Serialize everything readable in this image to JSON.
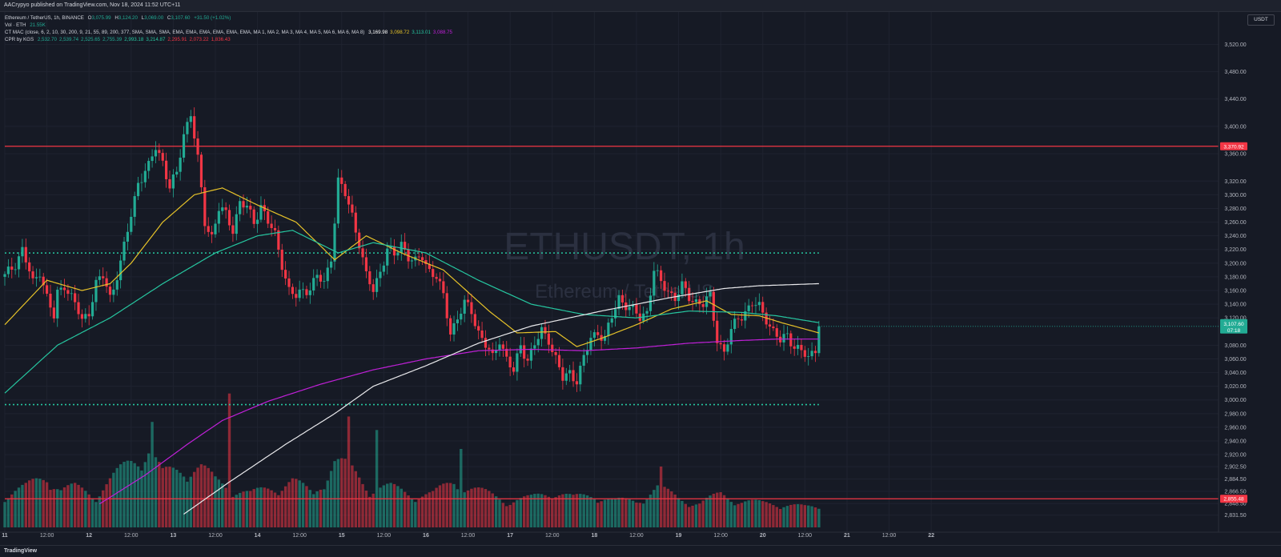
{
  "header": {
    "publisher": "AACrypyo published on TradingView.com, Nov 18, 2024 11:52 UTC+11"
  },
  "legend": {
    "symbol": "Ethereum / TetherUS, 1h, BINANCE",
    "open_label": "O",
    "open": "3,075.99",
    "high_label": "H",
    "high": "3,124.20",
    "low_label": "L",
    "low": "3,069.00",
    "close_label": "C",
    "close": "3,107.60",
    "change": "+31.50 (+1.02%)",
    "vol_label": "Vol · ETH",
    "vol_value": "21.55K",
    "ctmac_label": "CT MAC (close, 6, 2, 10, 30, 200, 9, 21, 55, 89, 200, 377, SMA, SMA, SMA, EMA, EMA, EMA, EMA, EMA, EMA, MA 1, MA 2, MA 3, MA 4, MA 5, MA 6, MA 6, MA 8)",
    "ctmac_values": [
      {
        "v": "3,169.98",
        "color": "#ffffff"
      },
      {
        "v": "3,098.72",
        "color": "#e6c229"
      },
      {
        "v": "3,113.01",
        "color": "#26c6a0"
      },
      {
        "v": "3,088.75",
        "color": "#c020d8"
      }
    ],
    "cpr_label": "CPR by KGS",
    "cpr_values": [
      {
        "v": "2,532.70",
        "color": "#22ab94"
      },
      {
        "v": "2,539.74",
        "color": "#22ab94"
      },
      {
        "v": "2,525.65",
        "color": "#22ab94"
      },
      {
        "v": "2,755.39",
        "color": "#22ab94"
      },
      {
        "v": "2,993.18",
        "color": "#26c6a0"
      },
      {
        "v": "3,214.87",
        "color": "#26c6a0"
      },
      {
        "v": "2,295.91",
        "color": "#f23645"
      },
      {
        "v": "2,073.22",
        "color": "#f23645"
      },
      {
        "v": "1,836.43",
        "color": "#f23645"
      }
    ]
  },
  "watermark": {
    "symbol": "ETHUSDT, 1h",
    "name": "Ethereum / TetherUS"
  },
  "axis": {
    "unit": "USDT"
  },
  "footer": {
    "logo": "TradingView"
  },
  "colors": {
    "up": "#22ab94",
    "down": "#f23645",
    "sma200": "#e9e9ec",
    "ma_yellow": "#e6c229",
    "ma_teal": "#26c6a0",
    "ma_purple": "#c020d8",
    "level": "#f23645",
    "cpr": "#26c6a0"
  },
  "chart_data": {
    "type": "candlestick",
    "ylim": [
      2823,
      3538
    ],
    "y_ticks": [
      "3,520.00",
      "3,480.00",
      "3,440.00",
      "3,400.00",
      "3,360.00",
      "3,320.00",
      "3,300.00",
      "3,280.00",
      "3,260.00",
      "3,240.00",
      "3,220.00",
      "3,200.00",
      "3,180.00",
      "3,160.00",
      "3,140.00",
      "3,120.00",
      "3,080.00",
      "3,060.00",
      "3,040.00",
      "3,020.00",
      "3,000.00",
      "2,980.00",
      "2,960.00",
      "2,940.00",
      "2,920.00",
      "2,902.50",
      "2,884.50",
      "2,866.50",
      "2,848.50",
      "2,831.50"
    ],
    "x_ticks": [
      "11",
      "12:00",
      "12",
      "12:00",
      "13",
      "12:00",
      "14",
      "12:00",
      "15",
      "12:00",
      "16",
      "12:00",
      "17",
      "12:00",
      "18",
      "12:00",
      "19",
      "12:00",
      "20",
      "12:00",
      "21",
      "12:00",
      "22"
    ],
    "x_ticks_bold": [
      "11",
      "12",
      "13",
      "14",
      "15",
      "16",
      "17",
      "18"
    ],
    "levels": [
      {
        "price": 3370.92,
        "label": "3,370.92"
      },
      {
        "price": 2855.48,
        "label": "2,855.48"
      }
    ],
    "cpr_lines": [
      3214.87,
      2993.18
    ],
    "last_price": {
      "value": "3,107.60",
      "countdown": "07:18"
    },
    "anchors": [
      {
        "h": 0,
        "p": 3180
      },
      {
        "h": 3,
        "p": 3200
      },
      {
        "h": 5,
        "p": 3220
      },
      {
        "h": 8,
        "p": 3170
      },
      {
        "h": 10,
        "p": 3190
      },
      {
        "h": 12,
        "p": 3150
      },
      {
        "h": 14,
        "p": 3120
      },
      {
        "h": 15,
        "p": 3155
      },
      {
        "h": 17,
        "p": 3170
      },
      {
        "h": 20,
        "p": 3140
      },
      {
        "h": 22,
        "p": 3115
      },
      {
        "h": 24,
        "p": 3130
      },
      {
        "h": 26,
        "p": 3170
      },
      {
        "h": 28,
        "p": 3180
      },
      {
        "h": 30,
        "p": 3150
      },
      {
        "h": 33,
        "p": 3200
      },
      {
        "h": 36,
        "p": 3270
      },
      {
        "h": 38,
        "p": 3320
      },
      {
        "h": 41,
        "p": 3340
      },
      {
        "h": 43,
        "p": 3370
      },
      {
        "h": 45,
        "p": 3350
      },
      {
        "h": 47,
        "p": 3310
      },
      {
        "h": 49,
        "p": 3330
      },
      {
        "h": 51,
        "p": 3390
      },
      {
        "h": 53,
        "p": 3420
      },
      {
        "h": 55,
        "p": 3350
      },
      {
        "h": 57,
        "p": 3260
      },
      {
        "h": 59,
        "p": 3240
      },
      {
        "h": 61,
        "p": 3280
      },
      {
        "h": 63,
        "p": 3270
      },
      {
        "h": 65,
        "p": 3250
      },
      {
        "h": 67,
        "p": 3290
      },
      {
        "h": 69,
        "p": 3280
      },
      {
        "h": 71,
        "p": 3260
      },
      {
        "h": 73,
        "p": 3285
      },
      {
        "h": 75,
        "p": 3260
      },
      {
        "h": 77,
        "p": 3240
      },
      {
        "h": 79,
        "p": 3200
      },
      {
        "h": 81,
        "p": 3160
      },
      {
        "h": 83,
        "p": 3150
      },
      {
        "h": 85,
        "p": 3160
      },
      {
        "h": 87,
        "p": 3165
      },
      {
        "h": 89,
        "p": 3180
      },
      {
        "h": 91,
        "p": 3170
      },
      {
        "h": 93,
        "p": 3210
      },
      {
        "h": 95,
        "p": 3320
      },
      {
        "h": 97,
        "p": 3300
      },
      {
        "h": 99,
        "p": 3270
      },
      {
        "h": 101,
        "p": 3230
      },
      {
        "h": 103,
        "p": 3180
      },
      {
        "h": 105,
        "p": 3160
      },
      {
        "h": 107,
        "p": 3190
      },
      {
        "h": 109,
        "p": 3220
      },
      {
        "h": 111,
        "p": 3210
      },
      {
        "h": 113,
        "p": 3230
      },
      {
        "h": 115,
        "p": 3210
      },
      {
        "h": 117,
        "p": 3200
      },
      {
        "h": 119,
        "p": 3210
      },
      {
        "h": 121,
        "p": 3190
      },
      {
        "h": 123,
        "p": 3180
      },
      {
        "h": 125,
        "p": 3150
      },
      {
        "h": 127,
        "p": 3100
      },
      {
        "h": 129,
        "p": 3120
      },
      {
        "h": 131,
        "p": 3140
      },
      {
        "h": 133,
        "p": 3130
      },
      {
        "h": 135,
        "p": 3100
      },
      {
        "h": 137,
        "p": 3080
      },
      {
        "h": 139,
        "p": 3060
      },
      {
        "h": 141,
        "p": 3090
      },
      {
        "h": 143,
        "p": 3060
      },
      {
        "h": 145,
        "p": 3040
      },
      {
        "h": 147,
        "p": 3080
      },
      {
        "h": 149,
        "p": 3060
      },
      {
        "h": 151,
        "p": 3080
      },
      {
        "h": 153,
        "p": 3100
      },
      {
        "h": 155,
        "p": 3090
      },
      {
        "h": 157,
        "p": 3060
      },
      {
        "h": 159,
        "p": 3030
      },
      {
        "h": 161,
        "p": 3040
      },
      {
        "h": 163,
        "p": 3030
      },
      {
        "h": 165,
        "p": 3060
      },
      {
        "h": 167,
        "p": 3090
      },
      {
        "h": 169,
        "p": 3100
      },
      {
        "h": 171,
        "p": 3090
      },
      {
        "h": 173,
        "p": 3120
      },
      {
        "h": 175,
        "p": 3150
      },
      {
        "h": 177,
        "p": 3140
      },
      {
        "h": 179,
        "p": 3130
      },
      {
        "h": 181,
        "p": 3120
      },
      {
        "h": 183,
        "p": 3130
      },
      {
        "h": 185,
        "p": 3190
      },
      {
        "h": 187,
        "p": 3170
      },
      {
        "h": 189,
        "p": 3160
      },
      {
        "h": 191,
        "p": 3150
      },
      {
        "h": 193,
        "p": 3165
      },
      {
        "h": 195,
        "p": 3150
      },
      {
        "h": 197,
        "p": 3145
      },
      {
        "h": 199,
        "p": 3140
      },
      {
        "h": 201,
        "p": 3150
      },
      {
        "h": 203,
        "p": 3090
      },
      {
        "h": 205,
        "p": 3070
      },
      {
        "h": 207,
        "p": 3100
      },
      {
        "h": 209,
        "p": 3120
      },
      {
        "h": 211,
        "p": 3130
      },
      {
        "h": 213,
        "p": 3140
      },
      {
        "h": 215,
        "p": 3135
      },
      {
        "h": 217,
        "p": 3120
      },
      {
        "h": 219,
        "p": 3100
      },
      {
        "h": 221,
        "p": 3085
      },
      {
        "h": 223,
        "p": 3095
      },
      {
        "h": 225,
        "p": 3080
      },
      {
        "h": 227,
        "p": 3070
      },
      {
        "h": 229,
        "p": 3060
      },
      {
        "h": 231,
        "p": 3076
      },
      {
        "h": 232,
        "p": 3107.6
      }
    ],
    "volume_anchors": [
      {
        "h": 0,
        "v": 0.25
      },
      {
        "h": 6,
        "v": 0.3
      },
      {
        "h": 12,
        "v": 0.4
      },
      {
        "h": 16,
        "v": 0.28
      },
      {
        "h": 20,
        "v": 0.3
      },
      {
        "h": 26,
        "v": 0.25
      },
      {
        "h": 30,
        "v": 0.35
      },
      {
        "h": 36,
        "v": 0.5
      },
      {
        "h": 41,
        "v": 0.6
      },
      {
        "h": 45,
        "v": 0.4
      },
      {
        "h": 51,
        "v": 0.45
      },
      {
        "h": 56,
        "v": 0.45
      },
      {
        "h": 60,
        "v": 0.35
      },
      {
        "h": 65,
        "v": 0.3
      },
      {
        "h": 70,
        "v": 0.25
      },
      {
        "h": 76,
        "v": 0.3
      },
      {
        "h": 82,
        "v": 0.35
      },
      {
        "h": 88,
        "v": 0.25
      },
      {
        "h": 94,
        "v": 0.5
      },
      {
        "h": 98,
        "v": 0.45
      },
      {
        "h": 104,
        "v": 0.3
      },
      {
        "h": 110,
        "v": 0.3
      },
      {
        "h": 116,
        "v": 0.25
      },
      {
        "h": 122,
        "v": 0.25
      },
      {
        "h": 128,
        "v": 0.35
      },
      {
        "h": 132,
        "v": 0.3
      },
      {
        "h": 138,
        "v": 0.25
      },
      {
        "h": 144,
        "v": 0.2
      },
      {
        "h": 150,
        "v": 0.22
      },
      {
        "h": 156,
        "v": 0.28
      },
      {
        "h": 162,
        "v": 0.22
      },
      {
        "h": 168,
        "v": 0.25
      },
      {
        "h": 174,
        "v": 0.2
      },
      {
        "h": 180,
        "v": 0.2
      },
      {
        "h": 186,
        "v": 0.3
      },
      {
        "h": 192,
        "v": 0.22
      },
      {
        "h": 198,
        "v": 0.18
      },
      {
        "h": 204,
        "v": 0.25
      },
      {
        "h": 210,
        "v": 0.2
      },
      {
        "h": 216,
        "v": 0.18
      },
      {
        "h": 222,
        "v": 0.18
      },
      {
        "h": 228,
        "v": 0.15
      },
      {
        "h": 232,
        "v": 0.15
      }
    ],
    "volume_spikes": [
      {
        "h": 42,
        "v": 0.78
      },
      {
        "h": 64,
        "v": 0.99
      },
      {
        "h": 98,
        "v": 0.82
      },
      {
        "h": 106,
        "v": 0.72
      },
      {
        "h": 130,
        "v": 0.58
      },
      {
        "h": 187,
        "v": 0.45
      }
    ],
    "ma_series": [
      {
        "key": "ma_yellow",
        "anchors": [
          {
            "h": 0,
            "p": 3110
          },
          {
            "h": 12,
            "p": 3175
          },
          {
            "h": 22,
            "p": 3160
          },
          {
            "h": 30,
            "p": 3170
          },
          {
            "h": 36,
            "p": 3200
          },
          {
            "h": 45,
            "p": 3260
          },
          {
            "h": 54,
            "p": 3300
          },
          {
            "h": 62,
            "p": 3310
          },
          {
            "h": 72,
            "p": 3285
          },
          {
            "h": 83,
            "p": 3260
          },
          {
            "h": 94,
            "p": 3205
          },
          {
            "h": 103,
            "p": 3240
          },
          {
            "h": 113,
            "p": 3215
          },
          {
            "h": 125,
            "p": 3190
          },
          {
            "h": 138,
            "p": 3130
          },
          {
            "h": 146,
            "p": 3098
          },
          {
            "h": 157,
            "p": 3100
          },
          {
            "h": 163,
            "p": 3078
          },
          {
            "h": 170,
            "p": 3090
          },
          {
            "h": 180,
            "p": 3110
          },
          {
            "h": 190,
            "p": 3133
          },
          {
            "h": 200,
            "p": 3145
          },
          {
            "h": 207,
            "p": 3125
          },
          {
            "h": 215,
            "p": 3123
          },
          {
            "h": 222,
            "p": 3112
          },
          {
            "h": 232,
            "p": 3098
          }
        ]
      },
      {
        "key": "ma_teal",
        "anchors": [
          {
            "h": 0,
            "p": 3010
          },
          {
            "h": 15,
            "p": 3080
          },
          {
            "h": 30,
            "p": 3120
          },
          {
            "h": 45,
            "p": 3170
          },
          {
            "h": 60,
            "p": 3215
          },
          {
            "h": 72,
            "p": 3240
          },
          {
            "h": 82,
            "p": 3248
          },
          {
            "h": 95,
            "p": 3215
          },
          {
            "h": 105,
            "p": 3230
          },
          {
            "h": 120,
            "p": 3215
          },
          {
            "h": 135,
            "p": 3175
          },
          {
            "h": 150,
            "p": 3140
          },
          {
            "h": 165,
            "p": 3125
          },
          {
            "h": 180,
            "p": 3120
          },
          {
            "h": 195,
            "p": 3130
          },
          {
            "h": 210,
            "p": 3128
          },
          {
            "h": 220,
            "p": 3123
          },
          {
            "h": 232,
            "p": 3113
          }
        ]
      },
      {
        "key": "ma_purple",
        "anchors": [
          {
            "h": 27,
            "p": 2848
          },
          {
            "h": 40,
            "p": 2890
          },
          {
            "h": 52,
            "p": 2935
          },
          {
            "h": 62,
            "p": 2970
          },
          {
            "h": 75,
            "p": 2998
          },
          {
            "h": 90,
            "p": 3023
          },
          {
            "h": 105,
            "p": 3044
          },
          {
            "h": 120,
            "p": 3060
          },
          {
            "h": 135,
            "p": 3072
          },
          {
            "h": 150,
            "p": 3074
          },
          {
            "h": 165,
            "p": 3072
          },
          {
            "h": 180,
            "p": 3076
          },
          {
            "h": 195,
            "p": 3083
          },
          {
            "h": 210,
            "p": 3087
          },
          {
            "h": 220,
            "p": 3089
          },
          {
            "h": 232,
            "p": 3089
          }
        ]
      },
      {
        "key": "sma200",
        "anchors": [
          {
            "h": 51,
            "p": 2833
          },
          {
            "h": 64,
            "p": 2880
          },
          {
            "h": 80,
            "p": 2935
          },
          {
            "h": 94,
            "p": 2980
          },
          {
            "h": 105,
            "p": 3020
          },
          {
            "h": 120,
            "p": 3050
          },
          {
            "h": 135,
            "p": 3083
          },
          {
            "h": 150,
            "p": 3108
          },
          {
            "h": 170,
            "p": 3130
          },
          {
            "h": 190,
            "p": 3150
          },
          {
            "h": 205,
            "p": 3163
          },
          {
            "h": 215,
            "p": 3167
          },
          {
            "h": 232,
            "p": 3170
          }
        ]
      }
    ]
  }
}
